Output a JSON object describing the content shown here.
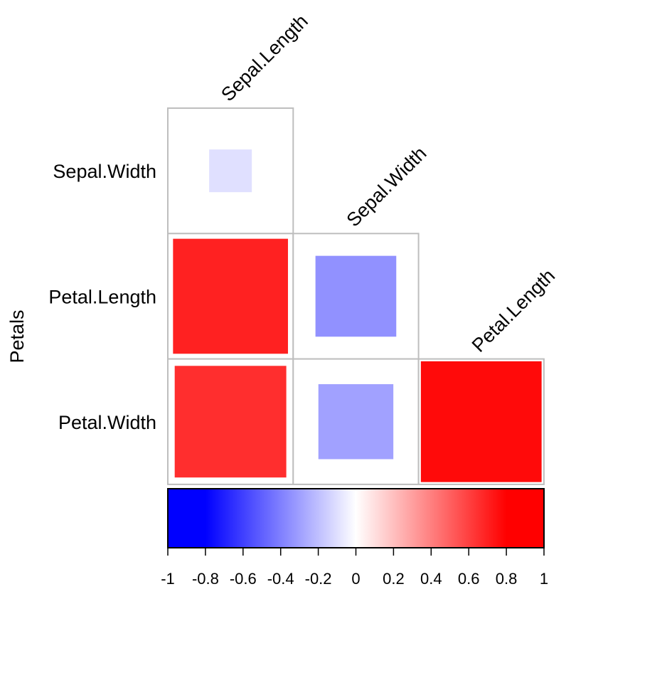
{
  "chart_data": {
    "type": "heatmap",
    "subtype": "correlation-matrix-lower",
    "shape": "square",
    "row_labels": [
      "Sepal.Width",
      "Petal.Length",
      "Petal.Width"
    ],
    "col_labels": [
      "Sepal.Length",
      "Sepal.Width",
      "Petal.Length"
    ],
    "ylabel": "Petals",
    "cells": [
      {
        "row": "Sepal.Width",
        "col": "Sepal.Length",
        "value": -0.12
      },
      {
        "row": "Petal.Length",
        "col": "Sepal.Length",
        "value": 0.87
      },
      {
        "row": "Petal.Length",
        "col": "Sepal.Width",
        "value": -0.43
      },
      {
        "row": "Petal.Width",
        "col": "Sepal.Length",
        "value": 0.82
      },
      {
        "row": "Petal.Width",
        "col": "Sepal.Width",
        "value": -0.37
      },
      {
        "row": "Petal.Width",
        "col": "Petal.Length",
        "value": 0.96
      }
    ],
    "colorbar": {
      "range": [
        -1,
        1
      ],
      "ticks": [
        "-1",
        "-0.8",
        "-0.6",
        "-0.4",
        "-0.2",
        "0",
        "0.2",
        "0.4",
        "0.6",
        "0.8",
        "1"
      ],
      "colors": {
        "low": "#0000FF",
        "mid": "#FFFFFF",
        "high": "#FF0000"
      },
      "orientation": "horizontal",
      "position": "bottom"
    },
    "grid_color": "#BEBEBE"
  }
}
